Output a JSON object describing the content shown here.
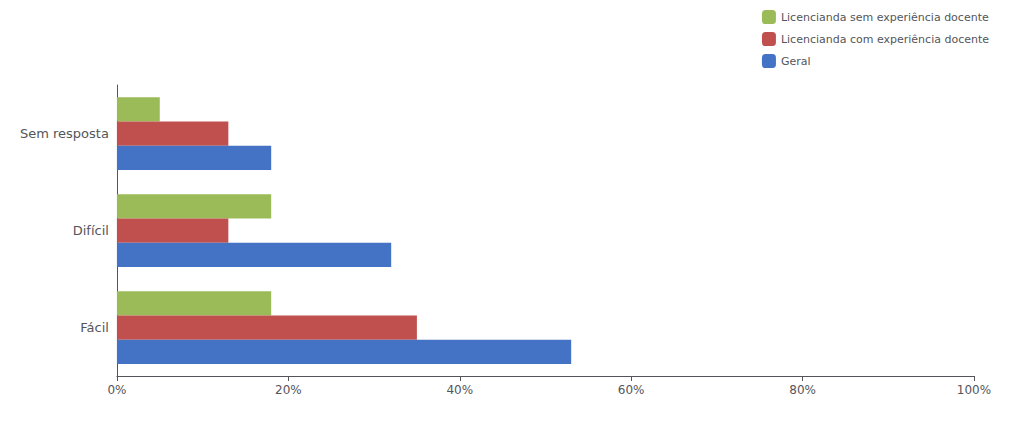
{
  "chart_data": {
    "type": "bar",
    "orientation": "horizontal",
    "categories": [
      "Fácil",
      "Difícil",
      "Sem resposta"
    ],
    "series": [
      {
        "name": "Licencianda sem experiência docente",
        "color": "#9BBB59",
        "values": [
          0.18,
          0.18,
          0.05
        ]
      },
      {
        "name": "Licencianda com experiência docente",
        "color": "#C0504D",
        "values": [
          0.35,
          0.13,
          0.13
        ]
      },
      {
        "name": "Geral",
        "color": "#4472C4",
        "values": [
          0.53,
          0.32,
          0.18
        ]
      }
    ],
    "xlim": [
      0,
      1.0
    ],
    "xticks": [
      {
        "value": 0.0,
        "label": "0%"
      },
      {
        "value": 0.2,
        "label": "20%"
      },
      {
        "value": 0.4,
        "label": "40%"
      },
      {
        "value": 0.6,
        "label": "60%"
      },
      {
        "value": 0.8,
        "label": "80%"
      },
      {
        "value": 1.0,
        "label": "100%"
      }
    ],
    "grid": false,
    "legend": "upper right"
  }
}
